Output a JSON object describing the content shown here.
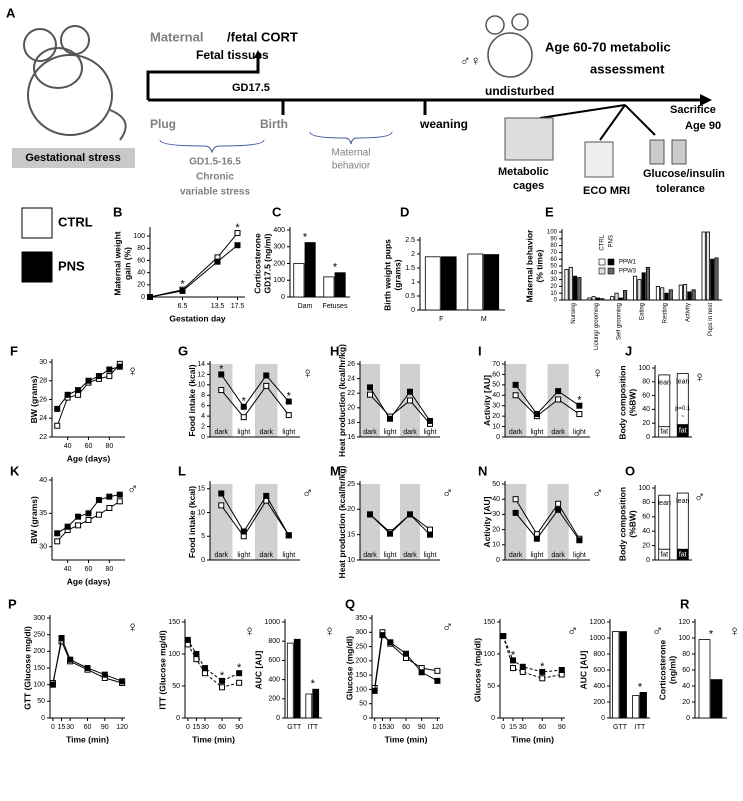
{
  "diagram": {
    "label": "A",
    "stress": "Gestational stress",
    "maternal": "Maternal",
    "cort": "/fetal CORT",
    "fetal": "Fetal tissues",
    "gd": "GD17.5",
    "plug": "Plug",
    "birth": "Birth",
    "weaning": "weaning",
    "undisturbed": "undisturbed",
    "stress_days": "GD1.5-16.5",
    "chronic": "Chronic",
    "variable": "variable stress",
    "behavior": [
      "Maternal",
      "behavior"
    ],
    "assessment": [
      "Age 60-70 metabolic",
      "assessment"
    ],
    "sacrifice": [
      "Sacrifice",
      "Age 90"
    ],
    "sexes": "♂♀",
    "cages": [
      "Metabolic",
      "cages"
    ],
    "mri": "ECO MRI",
    "gtt": [
      "Glucose/insulin",
      "tolerance"
    ]
  },
  "legend": [
    {
      "name": "CTRL",
      "color": "#ffffff"
    },
    {
      "name": "PNS",
      "color": "#000000"
    }
  ],
  "chart_data": [
    {
      "type": "line",
      "label": "B",
      "ylabel": [
        "Maternal weight",
        "gain (%)"
      ],
      "xlabel": "Gestation day",
      "x": [
        0,
        6.5,
        13.5,
        17.5
      ],
      "xlim": [
        0,
        19
      ],
      "xticks": [
        6.5,
        13.5,
        17.5
      ],
      "ylim": [
        0,
        110
      ],
      "yticks": [
        0,
        20,
        40,
        60,
        80,
        100
      ],
      "series": [
        {
          "color": "#ffffff",
          "values": [
            0,
            12,
            65,
            105
          ]
        },
        {
          "color": "#000000",
          "values": [
            0,
            10,
            58,
            85
          ]
        }
      ],
      "annotations": [
        {
          "text": "*",
          "index": 1
        },
        {
          "text": "*",
          "index": 3
        }
      ]
    },
    {
      "type": "bar",
      "label": "C",
      "ylabel": [
        "Corticosterone",
        "GD17.5 (ng/ml)"
      ],
      "categories": [
        "Dam",
        "Fetuses"
      ],
      "ylim": [
        0,
        400
      ],
      "yticks": [
        0,
        100,
        200,
        300,
        400
      ],
      "series": [
        {
          "color": "#ffffff",
          "values": [
            200,
            120
          ]
        },
        {
          "color": "#000000",
          "values": [
            325,
            145
          ]
        }
      ],
      "annotations": [
        {
          "text": "*",
          "index": 0
        },
        {
          "text": "*",
          "index": 1
        }
      ]
    },
    {
      "type": "bar",
      "label": "D",
      "ylabel": [
        "Birth weight pups",
        "(grams)"
      ],
      "categories": [
        "F",
        "M"
      ],
      "ylim": [
        0,
        2.5
      ],
      "yticks": [
        0,
        0.5,
        1,
        1.5,
        2,
        2.5
      ],
      "series": [
        {
          "color": "#ffffff",
          "values": [
            1.9,
            2.0
          ]
        },
        {
          "color": "#000000",
          "values": [
            1.9,
            1.98
          ]
        }
      ]
    },
    {
      "type": "bar",
      "label": "E",
      "ylabel": [
        "Maternal behavior",
        "(% time)"
      ],
      "categories": [
        "Nursing",
        "Licking/ grooming",
        "Self grooming",
        "Eating",
        "Resting",
        "Activity",
        "Pups in nest"
      ],
      "ylim": [
        0,
        100
      ],
      "yticks": [
        0,
        10,
        20,
        30,
        40,
        50,
        60,
        70,
        80,
        90,
        100
      ],
      "legend_columns": [
        "CTRL",
        "PNS"
      ],
      "series": [
        {
          "name": "PPW1",
          "group": "CTRL",
          "color": "#ffffff",
          "values": [
            45,
            3,
            5,
            35,
            20,
            22,
            100
          ]
        },
        {
          "name": "PPW3",
          "group": "CTRL",
          "color": "#e0e0e0",
          "values": [
            48,
            5,
            10,
            30,
            18,
            23,
            100
          ]
        },
        {
          "name": "PPW1",
          "group": "PNS",
          "color": "#000000",
          "values": [
            35,
            3,
            3,
            40,
            10,
            12,
            60
          ]
        },
        {
          "name": "PPW3",
          "group": "PNS",
          "color": "#666666",
          "values": [
            33,
            2,
            14,
            48,
            15,
            15,
            62
          ]
        }
      ]
    },
    {
      "type": "line",
      "label": "F",
      "ylabel": "BW (grams)",
      "xlabel": "Age (days)",
      "symbol": "♀",
      "x": [
        30,
        40,
        50,
        60,
        70,
        80,
        90
      ],
      "xlim": [
        25,
        95
      ],
      "xticks": [
        40,
        60,
        80
      ],
      "ylim": [
        22,
        30
      ],
      "yticks": [
        22,
        24,
        26,
        28,
        30
      ],
      "series": [
        {
          "color": "#ffffff",
          "values": [
            23.2,
            26.2,
            26.5,
            27.8,
            28.2,
            28.5,
            29.8
          ]
        },
        {
          "color": "#000000",
          "values": [
            25,
            26.5,
            27,
            28,
            28.5,
            29.2,
            29.5
          ]
        }
      ]
    },
    {
      "type": "line",
      "label": "G",
      "ylabel": "Food intake (kcal)",
      "symbol": "♀",
      "shade": true,
      "categories": [
        "dark",
        "light",
        "dark",
        "light"
      ],
      "ylim": [
        0,
        14
      ],
      "yticks": [
        0,
        2,
        4,
        6,
        8,
        10,
        12,
        14
      ],
      "series": [
        {
          "color": "#ffffff",
          "values": [
            9,
            3.8,
            9.8,
            4.2
          ]
        },
        {
          "color": "#000000",
          "values": [
            12,
            5.8,
            11.8,
            6.8
          ]
        }
      ],
      "annotations": [
        {
          "text": "*",
          "index": 0
        },
        {
          "text": "*",
          "index": 1
        },
        {
          "text": "*",
          "index": 3
        }
      ]
    },
    {
      "type": "line",
      "label": "H",
      "ylabel": "Heat production (kcal/hr/kg)",
      "shade": true,
      "categories": [
        "dark",
        "light",
        "dark",
        "light"
      ],
      "ylim": [
        16,
        26
      ],
      "yticks": [
        16,
        18,
        20,
        22,
        24,
        26
      ],
      "series": [
        {
          "color": "#ffffff",
          "values": [
            21.8,
            18.8,
            21,
            17.8
          ]
        },
        {
          "color": "#000000",
          "values": [
            22.8,
            18.5,
            22.2,
            18.2
          ]
        }
      ]
    },
    {
      "type": "line",
      "label": "I",
      "ylabel": "Activity [AU]",
      "symbol": "♀",
      "shade": true,
      "categories": [
        "dark",
        "light",
        "dark",
        "light"
      ],
      "ylim": [
        0,
        70
      ],
      "yticks": [
        0,
        10,
        20,
        30,
        40,
        50,
        60,
        70
      ],
      "series": [
        {
          "color": "#ffffff",
          "values": [
            40,
            20,
            36,
            22
          ]
        },
        {
          "color": "#000000",
          "values": [
            50,
            22,
            44,
            30
          ]
        }
      ],
      "annotations": [
        {
          "text": "*",
          "index": 3
        }
      ]
    },
    {
      "type": "stacked_bar",
      "label": "J",
      "ylabel": [
        "Body composition",
        "(%BW)"
      ],
      "symbol": "♀",
      "categories": [
        null,
        null
      ],
      "ylim": [
        0,
        100
      ],
      "yticks": [
        0,
        20,
        40,
        60,
        80,
        100
      ],
      "series": [
        {
          "name": "fat",
          "colors": [
            "#ffffff",
            "#000000"
          ],
          "values": [
            15,
            18
          ]
        },
        {
          "name": "lean",
          "colors": [
            "#ffffff",
            "#ffffff"
          ],
          "values": [
            75,
            74
          ]
        }
      ],
      "annotations": [
        {
          "text": "p=0.1",
          "index": 1
        },
        {
          "text": "~",
          "index": 1
        }
      ]
    },
    {
      "type": "line",
      "label": "K",
      "ylabel": "BW (grams)",
      "xlabel": "Age (days)",
      "symbol": "♂",
      "x": [
        30,
        40,
        50,
        60,
        70,
        80,
        90
      ],
      "xlim": [
        25,
        95
      ],
      "xticks": [
        40,
        60,
        80
      ],
      "ylim": [
        28,
        40
      ],
      "yticks": [
        30,
        35,
        40
      ],
      "series": [
        {
          "color": "#ffffff",
          "values": [
            30.8,
            32.5,
            33.2,
            34,
            34.8,
            35.8,
            36.8
          ]
        },
        {
          "color": "#000000",
          "values": [
            32,
            33,
            34.5,
            35,
            37,
            37.5,
            37.8
          ]
        }
      ]
    },
    {
      "type": "line",
      "label": "L",
      "ylabel": "Food intake (kcal)",
      "symbol": "♂",
      "shade": true,
      "categories": [
        "dark",
        "light",
        "dark",
        "light"
      ],
      "ylim": [
        0,
        16
      ],
      "yticks": [
        0,
        5,
        10,
        15
      ],
      "series": [
        {
          "color": "#ffffff",
          "values": [
            11.5,
            5,
            12.5,
            5.2
          ]
        },
        {
          "color": "#000000",
          "values": [
            14,
            6,
            13.5,
            5.2
          ]
        }
      ]
    },
    {
      "type": "line",
      "label": "M",
      "ylabel": "Heat production (kcal/hr/kg)",
      "symbol": "♂",
      "shade": true,
      "categories": [
        "dark",
        "light",
        "dark",
        "light"
      ],
      "ylim": [
        10,
        25
      ],
      "yticks": [
        10,
        15,
        20,
        25
      ],
      "series": [
        {
          "color": "#ffffff",
          "values": [
            19,
            15.5,
            19,
            16
          ]
        },
        {
          "color": "#000000",
          "values": [
            19,
            15.2,
            19,
            15
          ]
        }
      ]
    },
    {
      "type": "line",
      "label": "N",
      "ylabel": "Activity [AU]",
      "symbol": "♂",
      "shade": true,
      "categories": [
        "dark",
        "light",
        "dark",
        "light"
      ],
      "ylim": [
        0,
        50
      ],
      "yticks": [
        0,
        10,
        20,
        30,
        40,
        50
      ],
      "series": [
        {
          "color": "#ffffff",
          "values": [
            40,
            17,
            37,
            14
          ]
        },
        {
          "color": "#000000",
          "values": [
            31,
            14,
            33,
            13
          ]
        }
      ]
    },
    {
      "type": "stacked_bar",
      "label": "O",
      "ylabel": [
        "Body composition",
        "(%BW)"
      ],
      "symbol": "♂",
      "categories": [
        null,
        null
      ],
      "ylim": [
        0,
        100
      ],
      "yticks": [
        0,
        20,
        40,
        60,
        80,
        100
      ],
      "series": [
        {
          "name": "fat",
          "colors": [
            "#ffffff",
            "#000000"
          ],
          "values": [
            15,
            15
          ]
        },
        {
          "name": "lean",
          "colors": [
            "#ffffff",
            "#ffffff"
          ],
          "values": [
            75,
            78
          ]
        }
      ]
    },
    {
      "type": "line",
      "label": "P",
      "ylabel": "GTT (Glucose mg/dl)",
      "xlabel": "Time (min)",
      "symbol": "♀",
      "x": [
        0,
        15,
        30,
        60,
        90,
        120
      ],
      "xlim": [
        -5,
        125
      ],
      "xticks": [
        0,
        15,
        30,
        60,
        90,
        120
      ],
      "ylim": [
        0,
        300
      ],
      "yticks": [
        0,
        50,
        100,
        150,
        200,
        250,
        300
      ],
      "series": [
        {
          "color": "#ffffff",
          "values": [
            105,
            230,
            170,
            145,
            120,
            105
          ]
        },
        {
          "color": "#000000",
          "values": [
            100,
            240,
            175,
            150,
            130,
            110
          ]
        }
      ]
    },
    {
      "type": "line",
      "ylabel": "ITT (Glucose mg/dl)",
      "xlabel": "Time (min)",
      "symbol": "♀",
      "line_style": "dashed",
      "x": [
        0,
        15,
        30,
        60,
        90
      ],
      "xlim": [
        -5,
        95
      ],
      "xticks": [
        0,
        15,
        30,
        60,
        90
      ],
      "ylim": [
        0,
        150
      ],
      "yticks": [
        0,
        50,
        100,
        150
      ],
      "series": [
        {
          "color": "#ffffff",
          "values": [
            115,
            92,
            70,
            48,
            55
          ]
        },
        {
          "color": "#000000",
          "values": [
            122,
            100,
            78,
            58,
            70
          ]
        }
      ],
      "annotations": [
        {
          "text": "*",
          "index": 3
        },
        {
          "text": "*",
          "index": 4
        }
      ]
    },
    {
      "type": "bar",
      "ylabel": "AUC [AU]",
      "symbol": "♀",
      "categories": [
        "GTT",
        "ITT"
      ],
      "ylim": [
        0,
        1000
      ],
      "yticks": [
        0,
        200,
        400,
        600,
        800,
        1000
      ],
      "series": [
        {
          "color": "#ffffff",
          "values": [
            780,
            250
          ]
        },
        {
          "color": "#000000",
          "values": [
            820,
            300
          ]
        }
      ],
      "annotations": [
        {
          "text": "*",
          "index": 1
        }
      ]
    },
    {
      "type": "line",
      "label": "Q",
      "ylabel": "Glucose (mg/dl)",
      "xlabel": "Time (min)",
      "symbol": "♂",
      "x": [
        0,
        15,
        30,
        60,
        90,
        120
      ],
      "xlim": [
        -5,
        125
      ],
      "xticks": [
        0,
        15,
        30,
        60,
        90,
        120
      ],
      "ylim": [
        0,
        350
      ],
      "yticks": [
        0,
        50,
        100,
        150,
        200,
        250,
        300,
        350
      ],
      "series": [
        {
          "color": "#ffffff",
          "values": [
            105,
            300,
            260,
            210,
            175,
            165
          ]
        },
        {
          "color": "#000000",
          "values": [
            95,
            290,
            265,
            225,
            160,
            130
          ]
        }
      ]
    },
    {
      "type": "line",
      "ylabel": "Glucose (mg/dl)",
      "xlabel": "Time (min)",
      "symbol": "♂",
      "line_style": "dashed",
      "x": [
        0,
        15,
        30,
        60,
        90
      ],
      "xlim": [
        -5,
        95
      ],
      "xticks": [
        0,
        15,
        30,
        60,
        90
      ],
      "ylim": [
        0,
        150
      ],
      "yticks": [
        0,
        50,
        100,
        150
      ],
      "series": [
        {
          "color": "#ffffff",
          "values": [
            128,
            78,
            72,
            62,
            68
          ]
        },
        {
          "color": "#000000",
          "values": [
            128,
            90,
            80,
            72,
            75
          ]
        }
      ],
      "annotations": [
        {
          "text": "*",
          "index": 1
        },
        {
          "text": "*",
          "index": 3
        }
      ]
    },
    {
      "type": "bar",
      "ylabel": "AUC [AU]",
      "symbol": "♂",
      "categories": [
        "GTT",
        "ITT"
      ],
      "ylim": [
        0,
        1200
      ],
      "yticks": [
        0,
        200,
        400,
        600,
        800,
        1000,
        1200
      ],
      "series": [
        {
          "color": "#ffffff",
          "values": [
            1080,
            280
          ]
        },
        {
          "color": "#000000",
          "values": [
            1080,
            320
          ]
        }
      ],
      "annotations": [
        {
          "text": "*",
          "index": 1
        }
      ]
    },
    {
      "type": "bar",
      "label": "R",
      "ylabel": [
        "Corticosterone",
        "(ng/ml)"
      ],
      "symbol": "♀",
      "categories": [
        null
      ],
      "ylim": [
        0,
        120
      ],
      "yticks": [
        0,
        20,
        40,
        60,
        80,
        100,
        120
      ],
      "series": [
        {
          "color": "#ffffff",
          "values": [
            98
          ]
        },
        {
          "color": "#000000",
          "values": [
            48
          ]
        }
      ],
      "annotations": [
        {
          "text": "*",
          "index": 0
        }
      ]
    }
  ]
}
